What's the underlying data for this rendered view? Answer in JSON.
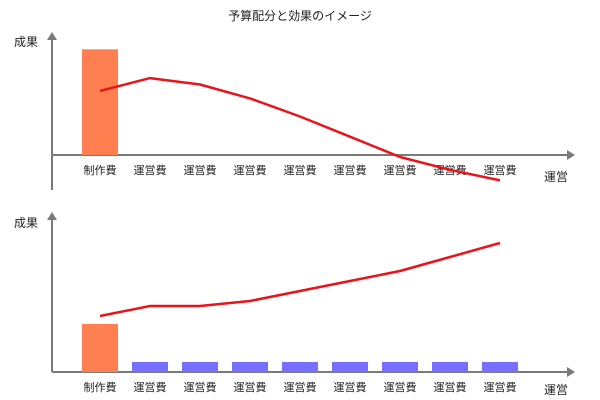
{
  "title": "予算配分と効果のイメージ",
  "colors": {
    "production_bar": "#ff7f50",
    "operation_bar": "#7570ff",
    "line": "#e8141a",
    "axis": "#7a7a7a"
  },
  "chart_data": [
    {
      "type": "bar",
      "panel": "top",
      "ylabel": "成果",
      "xlabel": "運営",
      "categories": [
        "制作費",
        "運営費",
        "運営費",
        "運営費",
        "運営費",
        "運営費",
        "運営費",
        "運営費",
        "運営費"
      ],
      "values": [
        10,
        0,
        0,
        0,
        0,
        0,
        0,
        0,
        0
      ],
      "line": [
        6.1,
        7.3,
        6.7,
        5.4,
        3.7,
        1.8,
        -0.1,
        -1.3,
        -2.3
      ],
      "ylim": [
        -3.2,
        10.5
      ]
    },
    {
      "type": "bar",
      "panel": "bottom",
      "ylabel": "成果",
      "xlabel": "運営",
      "categories": [
        "制作費",
        "運営費",
        "運営費",
        "運営費",
        "運営費",
        "運営費",
        "運営費",
        "運営費",
        "運営費"
      ],
      "values": [
        4.8,
        1,
        1,
        1,
        1,
        1,
        1,
        1,
        1
      ],
      "line": [
        5.6,
        6.6,
        6.6,
        7.1,
        8.1,
        9.1,
        10.1,
        11.5,
        12.9
      ],
      "ylim": [
        0,
        15
      ]
    }
  ]
}
